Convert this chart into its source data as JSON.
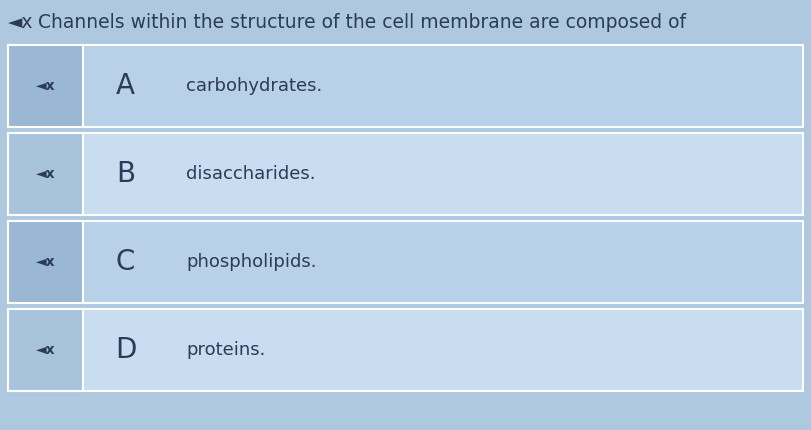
{
  "title_prefix": "◄x",
  "title_text": " Channels within the structure of the cell membrane are composed of",
  "title_fontsize": 13.5,
  "title_color": "#2c3b5a",
  "bg_color": "#aec8e0",
  "row_colors": [
    "#b8d0e8",
    "#c8ddf0"
  ],
  "col1_bg": "#9ab8d4",
  "col1_bg_alt": "#a8c4dc",
  "options": [
    {
      "letter": "A",
      "text": "carbohydrates."
    },
    {
      "letter": "B",
      "text": "disaccharides."
    },
    {
      "letter": "C",
      "text": "phospholipids."
    },
    {
      "letter": "D",
      "text": "proteins."
    }
  ],
  "letter_fontsize": 20,
  "text_fontsize": 13,
  "icon_fontsize": 10,
  "text_color": "#2c3b5a",
  "icon_symbol": "◄x"
}
